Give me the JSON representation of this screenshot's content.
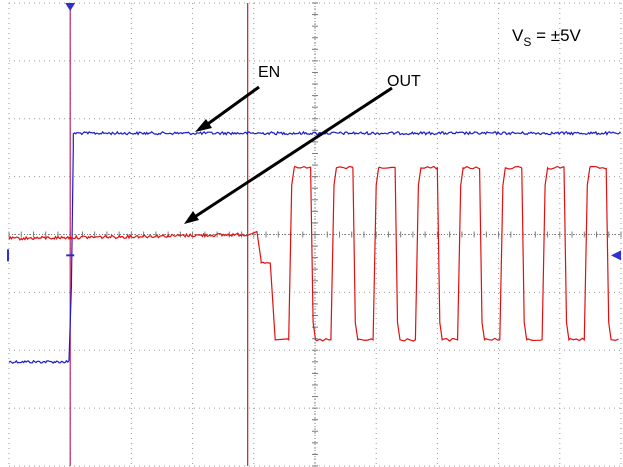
{
  "chart_data": {
    "type": "line",
    "title": "",
    "xlabel": "",
    "ylabel": "",
    "annotations": {
      "supply": "V_S = ±5V",
      "en_label": "EN",
      "out_label": "OUT"
    },
    "grid": {
      "on": true,
      "x_divisions": 10,
      "y_divisions": 8,
      "style": "dotted"
    },
    "x_range": [
      0,
      10
    ],
    "y_range": [
      0,
      8
    ],
    "markers": {
      "trigger_time": 1.0,
      "cursor_time": 3.9,
      "trigger_level": 3.64,
      "ground_level_right": 3.64
    },
    "series": [
      {
        "name": "EN",
        "color": "#1c1cc8",
        "points": [
          [
            0.0,
            1.8
          ],
          [
            1.0,
            1.8
          ],
          [
            1.02,
            3.1
          ],
          [
            1.05,
            5.5
          ],
          [
            1.12,
            5.7
          ],
          [
            10.0,
            5.75
          ]
        ]
      },
      {
        "name": "OUT",
        "color": "#e01010",
        "low_level": 2.18,
        "high_level": 5.15,
        "idle_level": 3.93,
        "square_wave": {
          "start_time": 4.15,
          "period": 0.69,
          "cycles": 8,
          "duty": 0.52
        },
        "points": [
          [
            0.0,
            3.93
          ],
          [
            1.0,
            3.9
          ],
          [
            2.0,
            3.94
          ],
          [
            3.0,
            3.98
          ],
          [
            3.9,
            4.0
          ],
          [
            4.05,
            4.05
          ],
          [
            4.12,
            3.55
          ],
          [
            4.3,
            3.5
          ],
          [
            4.35,
            2.2
          ],
          [
            4.55,
            2.2
          ],
          [
            4.58,
            5.15
          ],
          [
            4.9,
            5.15
          ],
          [
            4.92,
            2.18
          ],
          [
            10.0,
            2.18
          ]
        ]
      }
    ]
  }
}
